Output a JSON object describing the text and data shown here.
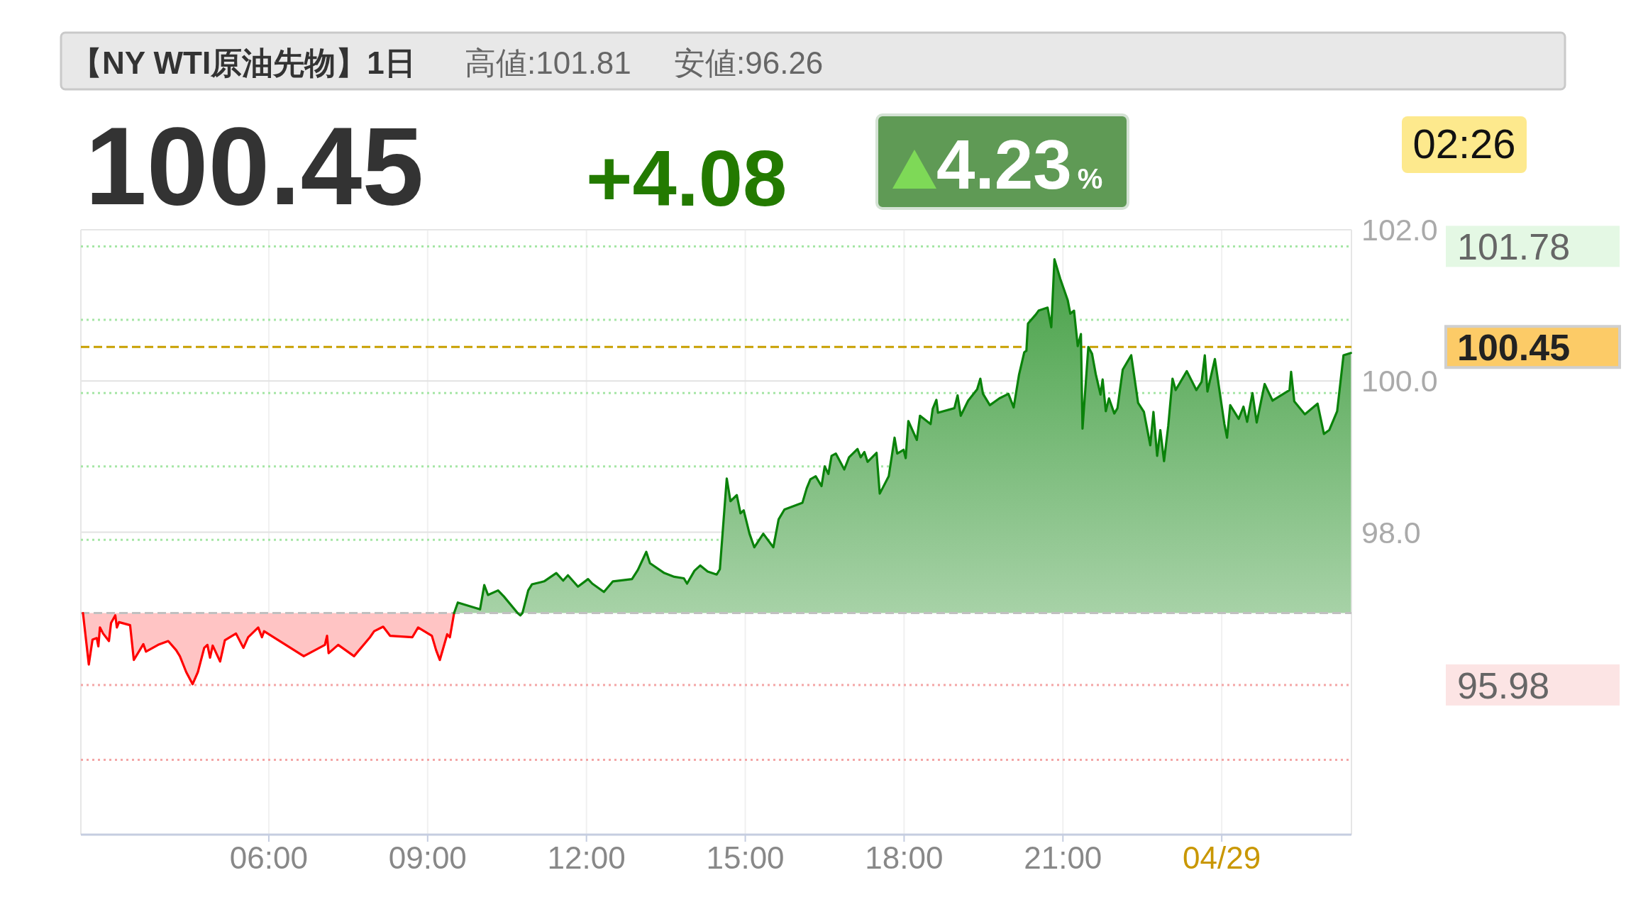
{
  "chart_data": {
    "type": "area",
    "title": "【NY WTI原油先物】1日",
    "annotations": [
      "高値:101.81",
      "安値:96.26",
      "100.45",
      "+4.08",
      "4.23%",
      "02:26"
    ],
    "xlim": [
      2.45,
      26.45
    ],
    "xticks": [
      {
        "value": 6,
        "label": "06:00"
      },
      {
        "value": 9,
        "label": "09:00"
      },
      {
        "value": 12,
        "label": "12:00"
      },
      {
        "value": 15,
        "label": "15:00"
      },
      {
        "value": 18,
        "label": "18:00"
      },
      {
        "value": 21,
        "label": "21:00"
      },
      {
        "value": 24,
        "label": "04/29"
      }
    ],
    "ylim": [
      94,
      102
    ],
    "yticks": [
      {
        "value": 98,
        "label": "98.0"
      },
      {
        "value": 100,
        "label": "100.0"
      },
      {
        "value": 102,
        "label": "102.0"
      }
    ],
    "grid": true,
    "ref_lines": [
      {
        "axis": "y",
        "value": 96.93,
        "color": "#c0c0c0",
        "line_style": "dashed"
      },
      {
        "axis": "y",
        "value": 101.78,
        "label": "101.78",
        "color": "#a6e6a6",
        "line_style": "dotted"
      },
      {
        "axis": "y",
        "value": 100.81,
        "color": "#a6e6a6",
        "line_style": "dotted"
      },
      {
        "axis": "y",
        "value": 100.45,
        "label": "100.45",
        "color": "#c8a000",
        "line_style": "dashed"
      },
      {
        "axis": "y",
        "value": 99.84,
        "color": "#a6e6a6",
        "line_style": "dotted"
      },
      {
        "axis": "y",
        "value": 98.87,
        "color": "#a6e6a6",
        "line_style": "dotted"
      },
      {
        "axis": "y",
        "value": 97.9,
        "color": "#a6e6a6",
        "line_style": "dotted"
      },
      {
        "axis": "y",
        "value": 95.98,
        "label": "95.98",
        "color": "#f4a6a6",
        "line_style": "dotted"
      },
      {
        "axis": "y",
        "value": 94.99,
        "color": "#f4a6a6",
        "line_style": "dotted"
      }
    ],
    "series": [
      {
        "color": "#ff0000",
        "x": [
          2.49,
          2.6,
          2.67,
          2.75,
          2.78,
          2.81,
          2.87,
          2.98,
          3.02,
          3.1,
          3.13,
          3.17,
          3.38,
          3.45,
          3.63,
          3.68,
          3.91,
          4.1,
          4.25,
          4.32,
          4.44,
          4.56,
          4.66,
          4.78,
          4.84,
          4.89,
          4.94,
          5.08,
          5.17,
          5.38,
          5.52,
          5.61,
          5.8,
          5.87,
          5.91,
          6.66,
          7.06,
          7.1,
          7.13,
          7.31,
          7.61,
          7.91,
          7.99,
          8.16,
          8.29,
          8.71,
          8.82,
          9.08,
          9.16,
          9.23,
          9.37,
          9.42,
          9.5
        ],
        "values": [
          96.93,
          96.25,
          96.58,
          96.6,
          96.49,
          96.74,
          96.66,
          96.56,
          96.8,
          96.9,
          96.74,
          96.81,
          96.77,
          96.31,
          96.52,
          96.42,
          96.51,
          96.56,
          96.44,
          96.36,
          96.15,
          95.99,
          96.15,
          96.47,
          96.51,
          96.34,
          96.5,
          96.29,
          96.57,
          96.66,
          96.47,
          96.61,
          96.74,
          96.61,
          96.69,
          96.36,
          96.51,
          96.63,
          96.4,
          96.51,
          96.36,
          96.61,
          96.69,
          96.75,
          96.63,
          96.61,
          96.74,
          96.63,
          96.44,
          96.31,
          96.65,
          96.61,
          96.93
        ]
      },
      {
        "color": "#0a820a",
        "x": [
          9.5,
          9.57,
          9.99,
          10.07,
          10.14,
          10.33,
          10.44,
          10.7,
          10.75,
          10.79,
          10.82,
          10.9,
          10.97,
          11.2,
          11.43,
          11.56,
          11.65,
          11.84,
          12.03,
          12.11,
          12.33,
          12.5,
          12.86,
          12.97,
          13.13,
          13.2,
          13.47,
          13.66,
          13.84,
          13.9,
          14.04,
          14.15,
          14.29,
          14.46,
          14.52,
          14.65,
          14.72,
          14.84,
          14.91,
          14.97,
          15.08,
          15.17,
          15.34,
          15.53,
          15.63,
          15.74,
          16.08,
          16.16,
          16.23,
          16.33,
          16.44,
          16.5,
          16.57,
          16.63,
          16.71,
          16.87,
          16.96,
          17.12,
          17.18,
          17.25,
          17.31,
          17.48,
          17.54,
          17.71,
          17.82,
          17.87,
          17.99,
          18.03,
          18.08,
          18.24,
          18.3,
          18.5,
          18.54,
          18.61,
          18.64,
          18.95,
          19.01,
          19.07,
          19.21,
          19.38,
          19.44,
          19.49,
          19.62,
          19.8,
          19.97,
          20.07,
          20.17,
          20.27,
          20.31,
          20.34,
          20.49,
          20.54,
          20.71,
          20.78,
          20.84,
          20.95,
          21.09,
          21.14,
          21.21,
          21.28,
          21.34,
          21.37,
          21.48,
          21.55,
          21.62,
          21.71,
          21.75,
          21.81,
          21.87,
          21.97,
          22.03,
          22.13,
          22.29,
          22.42,
          22.53,
          22.65,
          22.71,
          22.78,
          22.84,
          22.91,
          22.99,
          23.07,
          23.13,
          23.34,
          23.52,
          23.62,
          23.68,
          23.73,
          23.87,
          24.05,
          24.1,
          24.16,
          24.32,
          24.41,
          24.48,
          24.58,
          24.66,
          24.81,
          24.96,
          25.28,
          25.31,
          25.37,
          25.57,
          25.81,
          25.93,
          26.03,
          26.18,
          26.3,
          26.44
        ],
        "values": [
          96.93,
          97.07,
          96.98,
          97.3,
          97.17,
          97.23,
          97.15,
          96.93,
          96.9,
          96.93,
          97.01,
          97.23,
          97.31,
          97.35,
          97.46,
          97.36,
          97.43,
          97.28,
          97.38,
          97.32,
          97.21,
          97.35,
          97.38,
          97.5,
          97.74,
          97.59,
          97.46,
          97.41,
          97.39,
          97.32,
          97.49,
          97.56,
          97.48,
          97.44,
          97.51,
          98.71,
          98.41,
          98.49,
          98.25,
          98.29,
          97.98,
          97.8,
          97.98,
          97.8,
          98.17,
          98.3,
          98.39,
          98.58,
          98.7,
          98.74,
          98.61,
          98.87,
          98.77,
          99.01,
          99.04,
          98.83,
          98.99,
          99.1,
          98.99,
          99.06,
          98.93,
          99.05,
          98.51,
          98.74,
          99.25,
          99.04,
          99.09,
          98.98,
          99.47,
          99.22,
          99.54,
          99.43,
          99.63,
          99.75,
          99.58,
          99.64,
          99.81,
          99.54,
          99.74,
          99.89,
          100.03,
          99.83,
          99.68,
          99.77,
          99.83,
          99.65,
          100.08,
          100.38,
          100.4,
          100.76,
          100.88,
          100.93,
          100.97,
          100.71,
          101.61,
          101.35,
          101.07,
          100.89,
          100.93,
          100.46,
          100.62,
          99.37,
          100.45,
          100.36,
          100.09,
          99.82,
          100.02,
          99.6,
          99.77,
          99.57,
          99.64,
          100.15,
          100.34,
          99.71,
          99.59,
          99.15,
          99.59,
          99.01,
          99.35,
          98.94,
          99.41,
          100.03,
          99.88,
          100.13,
          99.88,
          99.99,
          100.34,
          99.86,
          100.29,
          99.43,
          99.25,
          99.68,
          99.5,
          99.66,
          99.46,
          99.84,
          99.45,
          99.96,
          99.74,
          99.88,
          100.12,
          99.73,
          99.56,
          99.7,
          99.3,
          99.35,
          99.6,
          100.34,
          100.37
        ]
      }
    ]
  }
}
